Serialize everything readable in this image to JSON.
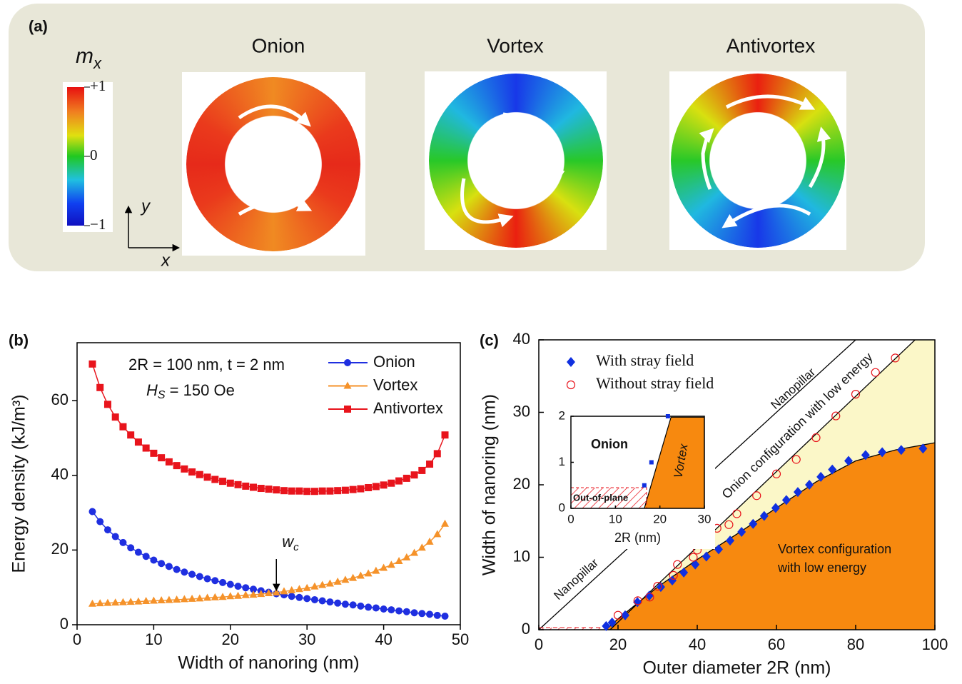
{
  "panel_a": {
    "label": "(a)",
    "colorbar_label": {
      "symbol": "m",
      "subscript": "x"
    },
    "colorbar": {
      "lim": [
        -1,
        1
      ],
      "ticks": [
        {
          "value": 1,
          "label": "+1"
        },
        0,
        {
          "value": -1,
          "label": "−1"
        }
      ]
    },
    "axes": {
      "y": "y",
      "x": "x"
    },
    "states": [
      "Onion",
      "Vortex",
      "Antivortex"
    ]
  },
  "chart_data": [
    {
      "type": "line",
      "label": "(b)",
      "x_label": "Width of nanoring (nm)",
      "y_label": "Energy density (kJ/m³)",
      "xlim": [
        0,
        50
      ],
      "ylim": [
        0,
        75.5
      ],
      "xticks": [
        0,
        10,
        20,
        30,
        40,
        50
      ],
      "yticks": [
        0,
        20,
        40,
        60
      ],
      "annotations": [
        {
          "text": "2R = 100 nm, t = 2 nm"
        },
        {
          "parts": [
            "H",
            "S",
            " = 150 Oe"
          ]
        }
      ],
      "marker_annotation": {
        "parts": [
          "w",
          "c"
        ],
        "x": 26
      },
      "x": [
        2,
        3,
        4,
        5,
        6,
        7,
        8,
        9,
        10,
        11,
        12,
        13,
        14,
        15,
        16,
        17,
        18,
        19,
        20,
        21,
        22,
        23,
        24,
        25,
        26,
        27,
        28,
        29,
        30,
        31,
        32,
        33,
        34,
        35,
        36,
        37,
        38,
        39,
        40,
        41,
        42,
        43,
        44,
        45,
        46,
        47,
        48
      ],
      "series": [
        {
          "name": "Onion",
          "color": "#1f2fe0",
          "marker": "circle",
          "values": [
            30.3,
            27.6,
            25.4,
            23.6,
            22.0,
            20.6,
            19.4,
            18.3,
            17.3,
            16.4,
            15.6,
            14.8,
            14.1,
            13.5,
            12.9,
            12.3,
            11.8,
            11.3,
            10.8,
            10.3,
            9.9,
            9.5,
            9.1,
            8.7,
            8.3,
            8.0,
            7.6,
            7.3,
            7.0,
            6.7,
            6.4,
            6.1,
            5.8,
            5.5,
            5.3,
            5.0,
            4.7,
            4.5,
            4.2,
            4.0,
            3.7,
            3.5,
            3.2,
            3.0,
            2.8,
            2.5,
            2.3
          ]
        },
        {
          "name": "Vortex",
          "color": "#f5922a",
          "marker": "triangle",
          "values": [
            5.6,
            5.7,
            5.8,
            5.9,
            6.0,
            6.1,
            6.2,
            6.3,
            6.4,
            6.5,
            6.6,
            6.7,
            6.8,
            6.9,
            7.0,
            7.2,
            7.3,
            7.4,
            7.6,
            7.7,
            7.9,
            8.0,
            8.2,
            8.4,
            8.6,
            8.9,
            9.2,
            9.5,
            9.8,
            10.2,
            10.6,
            11.0,
            11.5,
            12.0,
            12.5,
            13.1,
            13.7,
            14.4,
            15.2,
            16.0,
            17.0,
            18.0,
            19.2,
            20.6,
            22.2,
            24.2,
            27.0
          ]
        },
        {
          "name": "Antivortex",
          "color": "#e8141c",
          "marker": "square",
          "values": [
            69.8,
            63.5,
            59.0,
            55.6,
            53.0,
            50.8,
            48.9,
            47.3,
            45.9,
            44.7,
            43.6,
            42.6,
            41.7,
            40.9,
            40.2,
            39.5,
            38.9,
            38.4,
            37.9,
            37.5,
            37.1,
            36.8,
            36.5,
            36.3,
            36.1,
            35.9,
            35.8,
            35.8,
            35.7,
            35.7,
            35.8,
            35.8,
            35.9,
            36.0,
            36.2,
            36.4,
            36.7,
            37.0,
            37.4,
            37.9,
            38.5,
            39.2,
            40.1,
            41.3,
            43.0,
            45.8,
            50.8
          ]
        }
      ]
    },
    {
      "type": "scatter",
      "label": "(c)",
      "x_label": "Outer diameter 2R (nm)",
      "y_label": "Width of nanoring (nm)",
      "xlim": [
        0,
        100
      ],
      "ylim": [
        0,
        40
      ],
      "xticks": [
        0,
        20,
        40,
        60,
        80,
        100
      ],
      "yticks": [
        0,
        10,
        20,
        30,
        40
      ],
      "series": [
        {
          "name": "With stray field",
          "color": "#1030e0",
          "marker": "diamond",
          "x": [
            17,
            18.5,
            21.8,
            24.9,
            27.9,
            30.8,
            33.7,
            36.6,
            39.5,
            42.3,
            45.4,
            48.3,
            51.2,
            54.1,
            56.9,
            59.8,
            62.5,
            65.4,
            68.3,
            71.2,
            74.1,
            78.2,
            82.5,
            86.7,
            91.5,
            97
          ],
          "y": [
            0.5,
            1,
            2,
            3.8,
            4.7,
            5.9,
            6.8,
            7.9,
            9.0,
            10.1,
            11.1,
            12.3,
            13.5,
            14.6,
            15.7,
            16.8,
            17.9,
            19.0,
            20.0,
            21.1,
            22.1,
            23.3,
            24.1,
            24.5,
            24.8,
            25.0
          ]
        },
        {
          "name": "Without stray field",
          "color": "#e8141c",
          "marker": "open-circle",
          "x": [
            20,
            25,
            28,
            30,
            34,
            35,
            39,
            40,
            45,
            48,
            50,
            55,
            60,
            65,
            70,
            75,
            80,
            85,
            90
          ],
          "y": [
            2,
            4,
            4.5,
            6,
            7.5,
            9,
            10,
            11,
            14,
            14.5,
            16,
            18.5,
            21.5,
            23.5,
            26.5,
            29.5,
            32.5,
            35.5,
            37.5
          ]
        }
      ],
      "boundaries": {
        "vortex": {
          "x": [
            17,
            20,
            30,
            40,
            50,
            60,
            70,
            80,
            90,
            100
          ],
          "y": [
            0,
            1.5,
            5.9,
            9.7,
            13.2,
            16.8,
            20.4,
            23.3,
            24.8,
            25.8
          ]
        },
        "onion": {
          "x": [
            18,
            100
          ],
          "y": [
            0,
            42.6
          ]
        },
        "nanopillar": {
          "x": [
            0,
            80
          ],
          "y": [
            0,
            40
          ]
        }
      },
      "hatch": {
        "x": [
          0,
          17
        ],
        "y": [
          0,
          0.3
        ]
      },
      "texts": {
        "nanopillar_upper": "Nanopillar",
        "nanopillar_lower": "Nanopillar",
        "onion_region": "Onion configuration with low energy",
        "vortex_region": [
          "Vortex configuration",
          "with low energy"
        ]
      }
    },
    {
      "type": "scatter",
      "inset": true,
      "x_label": "2R (nm)",
      "xlim": [
        0,
        30
      ],
      "ylim": [
        0,
        2
      ],
      "xticks": [
        0,
        10,
        20,
        30
      ],
      "yticks": [
        0,
        1,
        2
      ],
      "series": [
        {
          "color": "#1030e0",
          "marker": "square",
          "x": [
            16.5,
            18.1,
            21.8
          ],
          "y": [
            0.5,
            1,
            2
          ]
        }
      ],
      "boundaries": {
        "vortex": {
          "x": [
            16.5,
            22.5,
            30,
            30
          ],
          "y": [
            0,
            1.98,
            1.98,
            0
          ]
        }
      },
      "hatch": {
        "x": [
          0,
          17
        ],
        "y": [
          0,
          0.45
        ]
      },
      "texts": {
        "onion": "Onion",
        "vortex": "Vortex",
        "out_of_plane": "Out-of-plane"
      }
    }
  ]
}
